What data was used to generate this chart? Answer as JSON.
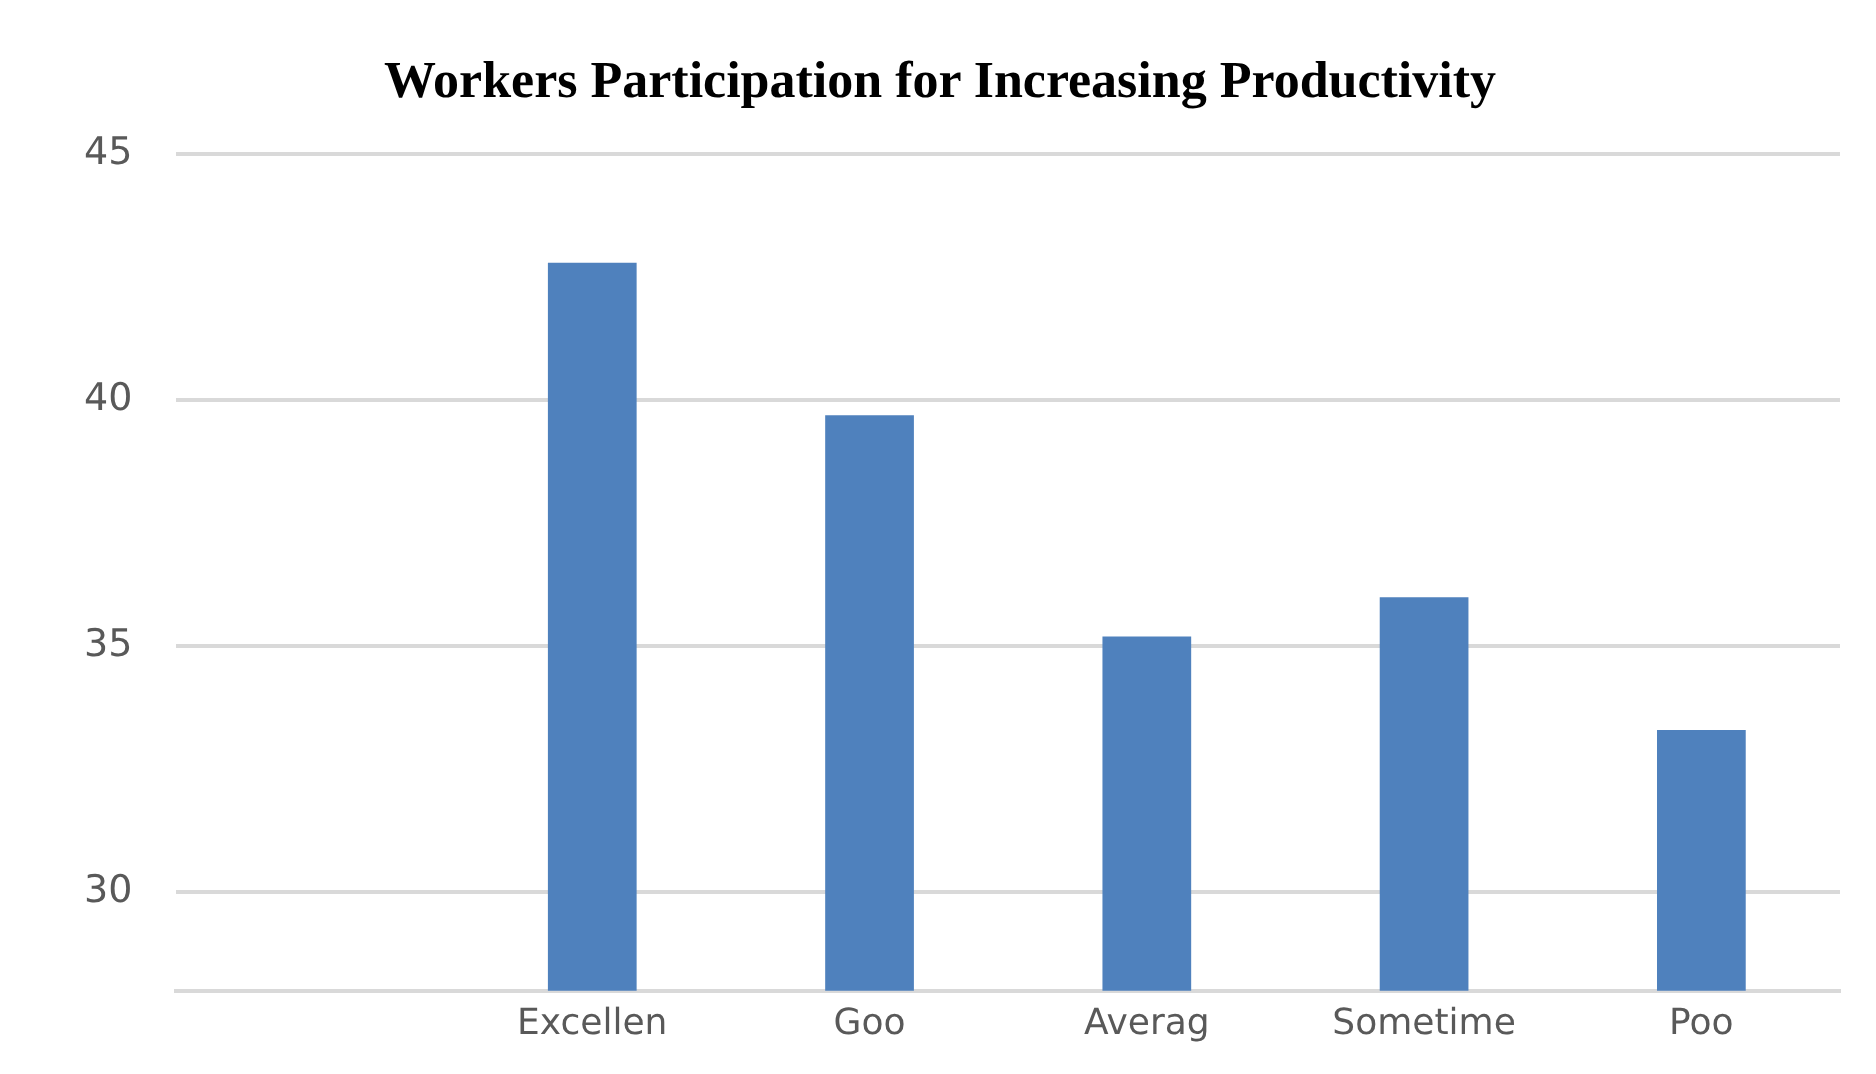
{
  "chart_data": {
    "type": "bar",
    "title": "Workers Participation for Increasing Productivity",
    "categories": [
      null,
      "Excellen",
      "Goo",
      "Averag",
      "Sometime",
      "Poo"
    ],
    "values": [
      null,
      42.8,
      39.7,
      35.2,
      36.0,
      33.3
    ],
    "color": "#4f81bd",
    "ylim": [
      28,
      45
    ],
    "yticks": [
      30,
      35,
      40,
      45
    ],
    "grid": "y",
    "legend": false
  }
}
